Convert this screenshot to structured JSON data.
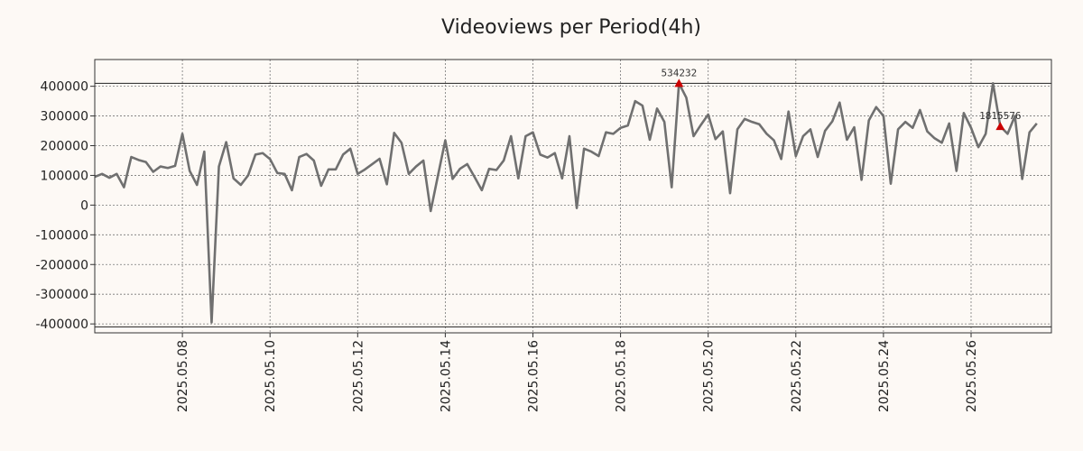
{
  "chart_data": {
    "type": "line",
    "title": "Videoviews per Period(4h)",
    "xlabel": "",
    "ylabel": "",
    "ylim": [
      -430000,
      490000
    ],
    "xlim": [
      0,
      131
    ],
    "y_ticks": [
      400000,
      300000,
      200000,
      100000,
      0,
      -100000,
      -200000,
      -300000,
      -400000
    ],
    "x_ticks": [
      {
        "pos": 12,
        "label": "2025.05.08"
      },
      {
        "pos": 24,
        "label": "2025.05.10"
      },
      {
        "pos": 36,
        "label": "2025.05.12"
      },
      {
        "pos": 48,
        "label": "2025.05.14"
      },
      {
        "pos": 60,
        "label": "2025.05.16"
      },
      {
        "pos": 72,
        "label": "2025.05.18"
      },
      {
        "pos": 84,
        "label": "2025.05.20"
      },
      {
        "pos": 96,
        "label": "2025.05.22"
      },
      {
        "pos": 108,
        "label": "2025.05.24"
      },
      {
        "pos": 120,
        "label": "2025.05.26"
      }
    ],
    "hlines": [
      410000,
      -410000
    ],
    "series": [
      {
        "name": "Videoviews",
        "color": "#707070",
        "values": [
          95000,
          105000,
          92000,
          105000,
          60000,
          162000,
          152000,
          145000,
          112000,
          130000,
          125000,
          132000,
          240000,
          115000,
          68000,
          180000,
          -395000,
          130000,
          212000,
          90000,
          68000,
          100000,
          170000,
          175000,
          155000,
          108000,
          105000,
          50000,
          162000,
          172000,
          150000,
          65000,
          120000,
          120000,
          170000,
          190000,
          105000,
          120000,
          138000,
          156000,
          70000,
          243000,
          210000,
          105000,
          130000,
          150000,
          -20000,
          100000,
          218000,
          88000,
          122000,
          138000,
          95000,
          50000,
          122000,
          118000,
          150000,
          232000,
          90000,
          232000,
          245000,
          170000,
          160000,
          175000,
          90000,
          232000,
          -10000,
          190000,
          180000,
          165000,
          245000,
          240000,
          260000,
          268000,
          350000,
          335000,
          220000,
          325000,
          280000,
          60000,
          410000,
          362000,
          232000,
          270000,
          305000,
          222000,
          248000,
          40000,
          255000,
          290000,
          280000,
          272000,
          240000,
          218000,
          155000,
          315000,
          165000,
          232000,
          255000,
          162000,
          250000,
          282000,
          345000,
          220000,
          262000,
          85000,
          285000,
          330000,
          300000,
          72000,
          255000,
          280000,
          260000,
          320000,
          248000,
          225000,
          210000,
          275000,
          115000,
          310000,
          260000,
          195000,
          240000,
          410000,
          265000,
          240000,
          300000,
          88000,
          245000,
          275000
        ]
      }
    ],
    "annotations": [
      {
        "index": 80,
        "label": "534232",
        "color": "#cc0000"
      },
      {
        "index": 124,
        "label": "1815576",
        "color": "#cc0000"
      }
    ]
  }
}
